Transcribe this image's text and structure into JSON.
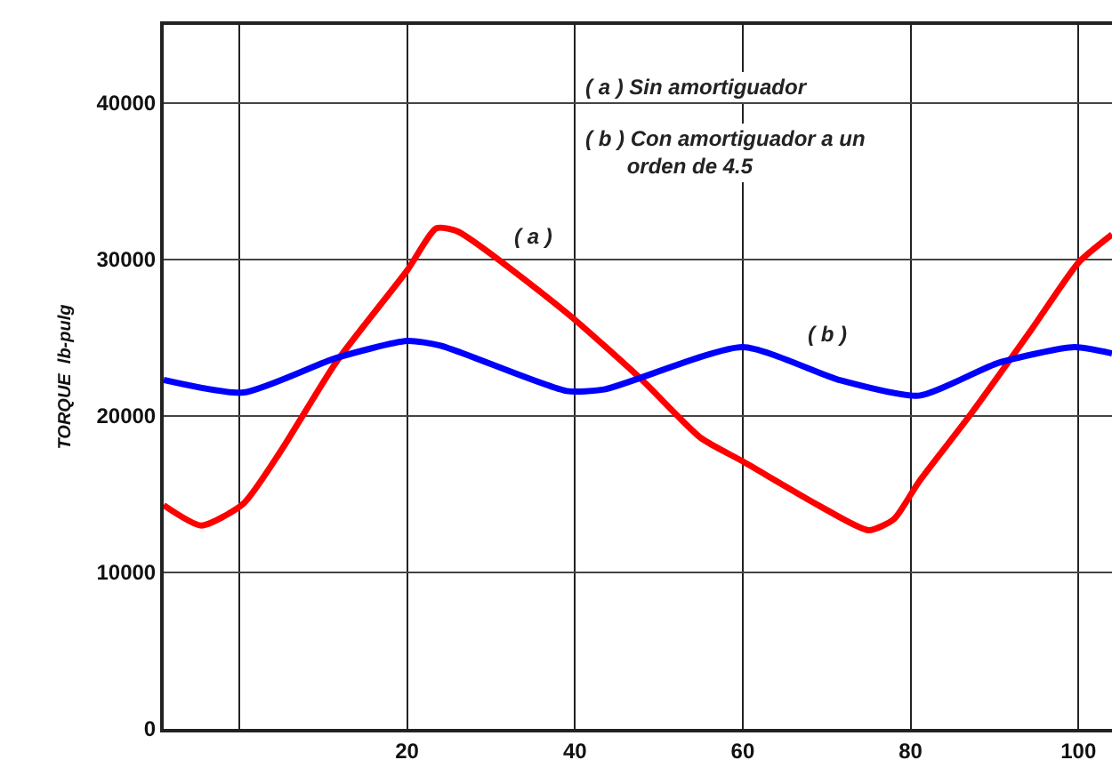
{
  "chart_data": {
    "type": "line",
    "ylabel": "TORQUE  lb-pulg",
    "xlim": [
      -9,
      104
    ],
    "xticks": [
      {
        "value": 0,
        "label": null
      },
      20,
      40,
      60,
      80,
      100
    ],
    "ylim": [
      0,
      45000
    ],
    "yticks": [
      0,
      10000,
      20000,
      30000,
      40000
    ],
    "grid": true,
    "marker": "none",
    "line_style": "solid",
    "series": [
      {
        "color": "#ff0000",
        "x": [
          -9,
          -4.5,
          0.5,
          5,
          11.5,
          20,
          23.5,
          26,
          39,
          48,
          55,
          60,
          69,
          75,
          78,
          81,
          87,
          94.5,
          100,
          104
        ],
        "values": [
          14300,
          13000,
          14400,
          17800,
          23400,
          29300,
          32000,
          31800,
          26600,
          22300,
          18600,
          17100,
          14300,
          12700,
          13400,
          15800,
          20000,
          25600,
          29800,
          31600
        ]
      },
      {
        "color": "#0000ff",
        "x": [
          -9,
          0.5,
          11.5,
          20,
          24,
          39,
          43.5,
          60,
          71.5,
          81,
          90.5,
          99.5,
          104
        ],
        "values": [
          22300,
          21500,
          23700,
          24800,
          24500,
          21600,
          21700,
          24400,
          22300,
          21300,
          23400,
          24400,
          24000
        ]
      }
    ],
    "annotations": [
      "( a ) Sin amortiguador",
      "( b ) Con amortiguador a un\n       orden de 4.5",
      "( a )",
      "( b )"
    ]
  }
}
